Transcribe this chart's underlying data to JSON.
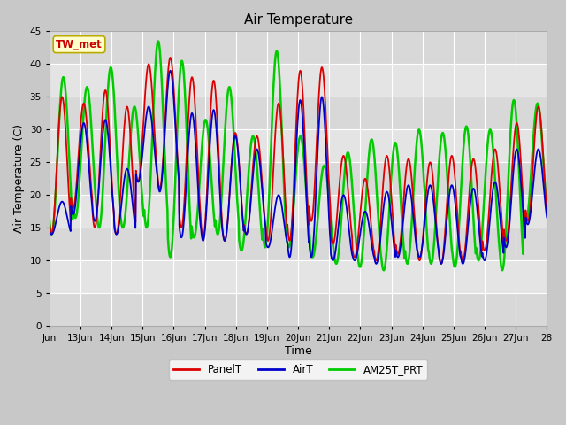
{
  "title": "Air Temperature",
  "xlabel": "Time",
  "ylabel": "Air Temperature (C)",
  "ylim": [
    0,
    45
  ],
  "yticks": [
    0,
    5,
    10,
    15,
    20,
    25,
    30,
    35,
    40,
    45
  ],
  "x_tick_labels": [
    "Jun",
    "13Jun",
    "14Jun",
    "15Jun",
    "16Jun",
    "17Jun",
    "18Jun",
    "19Jun",
    "20Jun",
    "21Jun",
    "22Jun",
    "23Jun",
    "24Jun",
    "25Jun",
    "26Jun",
    "27Jun",
    "28"
  ],
  "annotation_text": "TW_met",
  "annotation_bg": "#ffffcc",
  "annotation_border": "#bbaa00",
  "annotation_text_color": "#cc0000",
  "line_colors": {
    "PanelT": "#dd0000",
    "AirT": "#0000cc",
    "AM25T_PRT": "#00cc00"
  },
  "figsize": [
    6.4,
    4.8
  ],
  "dpi": 100,
  "fig_bg": "#c8c8c8",
  "plot_bg": "#e8e8e8",
  "band_colors": [
    "#d8d8d8",
    "#e4e4e4"
  ],
  "grid_color": "#ffffff",
  "PanelT_peaks": [
    35.0,
    34.0,
    36.0,
    33.5,
    40.0,
    41.0,
    38.0,
    37.5,
    29.5,
    29.0,
    34.0,
    39.0,
    39.5,
    26.0,
    22.5,
    26.0,
    25.5,
    25.0,
    26.0,
    25.5,
    27.0,
    31.0,
    33.5
  ],
  "PanelT_mins": [
    14.0,
    18.0,
    15.0,
    14.0,
    22.0,
    21.0,
    15.0,
    13.5,
    13.0,
    14.0,
    13.0,
    13.0,
    16.0,
    12.5,
    10.5,
    10.0,
    11.0,
    10.0,
    9.5,
    10.0,
    11.5,
    13.0,
    16.0
  ],
  "AirT_peaks": [
    19.0,
    31.0,
    31.5,
    24.0,
    33.5,
    39.0,
    32.5,
    33.0,
    29.0,
    27.0,
    20.0,
    34.5,
    35.0,
    20.0,
    17.5,
    20.5,
    21.5,
    21.5,
    21.5,
    21.0,
    22.0,
    27.0,
    27.0
  ],
  "AirT_mins": [
    14.0,
    17.0,
    16.0,
    14.0,
    22.0,
    20.5,
    13.5,
    13.0,
    13.0,
    14.0,
    12.0,
    10.5,
    10.5,
    10.0,
    10.0,
    9.5,
    10.5,
    10.5,
    9.5,
    9.5,
    10.0,
    12.0,
    15.5
  ],
  "AM25T_peaks": [
    38.0,
    36.5,
    39.5,
    33.5,
    43.5,
    40.5,
    31.5,
    36.5,
    29.0,
    42.0,
    29.0,
    24.5,
    26.5,
    28.5,
    28.0,
    30.0,
    29.5,
    30.5,
    30.0,
    34.5,
    34.0
  ],
  "AM25T_mins": [
    14.0,
    16.5,
    15.0,
    15.0,
    15.0,
    10.5,
    13.5,
    14.0,
    11.5,
    12.0,
    12.0,
    10.5,
    9.5,
    9.0,
    8.5,
    9.5,
    9.5,
    9.0,
    10.0,
    8.5,
    16.0
  ]
}
